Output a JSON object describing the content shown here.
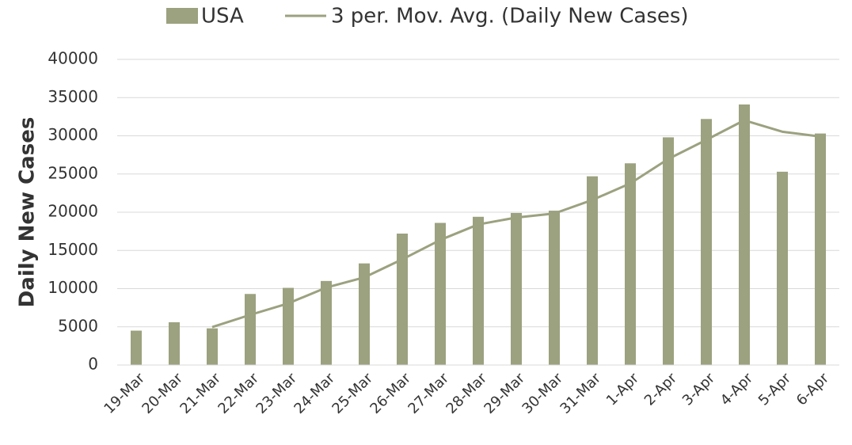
{
  "chart_data": {
    "type": "bar",
    "y_axis_label": "Daily New Cases",
    "categories": [
      "19-Mar",
      "20-Mar",
      "21-Mar",
      "22-Mar",
      "23-Mar",
      "24-Mar",
      "25-Mar",
      "26-Mar",
      "27-Mar",
      "28-Mar",
      "29-Mar",
      "30-Mar",
      "31-Mar",
      "1-Apr",
      "2-Apr",
      "3-Apr",
      "4-Apr",
      "5-Apr",
      "6-Apr"
    ],
    "series": [
      {
        "name": "USA",
        "type": "bar",
        "color": "#9ca17f",
        "values": [
          4500,
          5600,
          4800,
          9300,
          10100,
          11000,
          13300,
          17200,
          18600,
          19400,
          19900,
          20200,
          24700,
          26400,
          29800,
          32200,
          34100,
          25300,
          30300
        ]
      },
      {
        "name": "3 per. Mov. Avg. (Daily New Cases)",
        "type": "line",
        "color": "#9ca17f",
        "values": [
          null,
          null,
          4967,
          6567,
          8067,
          10133,
          11467,
          13833,
          16367,
          18400,
          19300,
          19833,
          21600,
          23767,
          26967,
          29467,
          32033,
          30533,
          29900
        ]
      }
    ],
    "ylim": [
      0,
      40000
    ],
    "yticks": [
      0,
      5000,
      10000,
      15000,
      20000,
      25000,
      30000,
      35000,
      40000
    ],
    "grid": true,
    "legend": "top"
  }
}
